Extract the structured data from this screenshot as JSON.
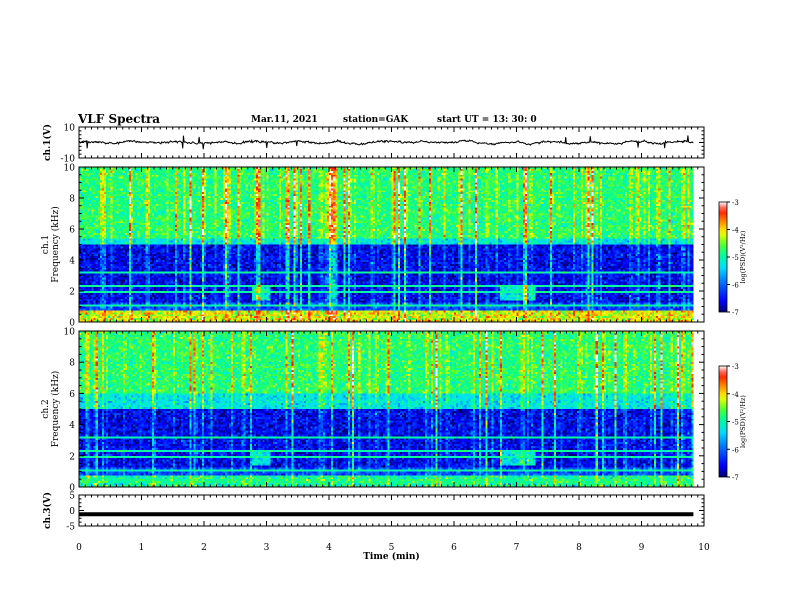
{
  "header": {
    "title": "VLF Spectra",
    "date": "Mar.11, 2021",
    "station": "station=GAK",
    "start": "start  UT =   13: 30: 0"
  },
  "chart_data": [
    {
      "type": "line",
      "panel": "ch1-voltage",
      "ylabel": "ch.1(V)",
      "ylim": [
        -10,
        10
      ],
      "yticks": [
        "10",
        "-10"
      ],
      "x_unit": "min",
      "xlim": [
        0,
        10
      ],
      "signal_mean": 0.0,
      "signal_amplitude": 2.0,
      "data_end_min": 9.83
    },
    {
      "type": "heatmap",
      "panel": "ch1-spectrogram",
      "ylabel": "ch.1\nFrequency (kHz)",
      "ylabel_line1": "ch.1",
      "ylabel_line2": "Frequency (kHz)",
      "ylim": [
        0,
        10
      ],
      "yticks": [
        "0",
        "2",
        "4",
        "6",
        "8",
        "10"
      ],
      "xlim": [
        0,
        10
      ],
      "data_end_min": 9.83,
      "colorbar": {
        "label": "log(PSD)(V²/Hz)",
        "range": [
          -7,
          -3
        ],
        "ticks": [
          "-3",
          "-4",
          "-5",
          "-6",
          "-7"
        ],
        "colors": [
          "#000080",
          "#0000ff",
          "#00c8ff",
          "#00ff80",
          "#ffff00",
          "#ff4000",
          "#ff0000",
          "#ffffff"
        ]
      }
    },
    {
      "type": "heatmap",
      "panel": "ch2-spectrogram",
      "ylabel": "ch.2\nFrequency (kHz)",
      "ylabel_line1": "ch.2",
      "ylabel_line2": "Frequency (kHz)",
      "ylim": [
        0,
        10
      ],
      "yticks": [
        "0",
        "2",
        "4",
        "6",
        "8",
        "10"
      ],
      "xlim": [
        0,
        10
      ],
      "data_end_min": 9.83,
      "colorbar": {
        "label": "log(PSD)(V²/Hz)",
        "range": [
          -7,
          -3
        ],
        "ticks": [
          "-3",
          "-4",
          "-5",
          "-6",
          "-7"
        ]
      }
    },
    {
      "type": "line",
      "panel": "ch3-voltage",
      "ylabel": "ch.3(V)",
      "ylim": [
        -5,
        5
      ],
      "yticks": [
        "5",
        "0",
        "-5"
      ],
      "signal_value": -1.2,
      "xlim": [
        0,
        10
      ],
      "xticks": [
        "0",
        "1",
        "2",
        "3",
        "4",
        "5",
        "6",
        "7",
        "8",
        "9",
        "10"
      ],
      "xlabel": "Time (min)",
      "data_end_min": 9.83
    }
  ]
}
